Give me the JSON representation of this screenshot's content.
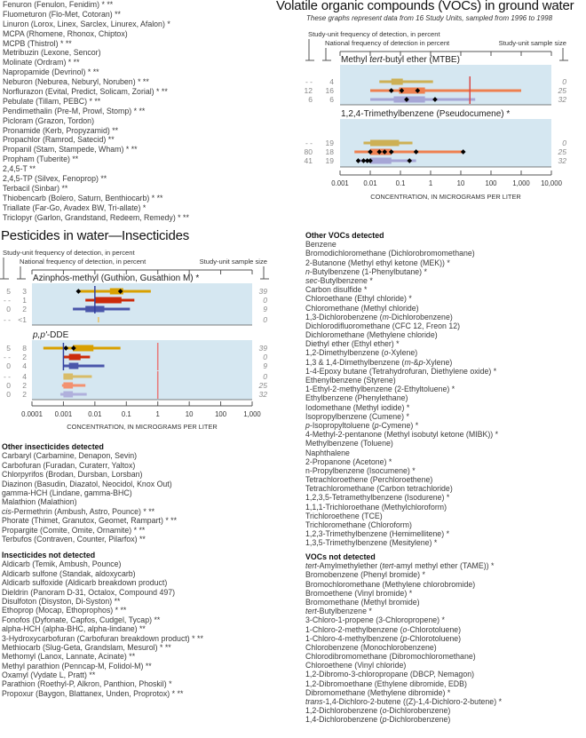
{
  "herbicides_list": {
    "items": [
      "Fenuron (Fenulon, Fenidim) * **",
      "Fluometuron (Flo-Met, Cotoran)  **",
      "Linuron (Lorox, Linex, Sarclex, Linurex, Afalon) *",
      "MCPA (Rhomene, Rhonox, Chiptox)",
      "MCPB (Thistrol) * **",
      "Metribuzin (Lexone, Sencor)",
      "Molinate (Ordram) * **",
      "Napropamide (Devrinol) * **",
      "Neburon (Neburea, Neburyl, Noruben) * **",
      "Norflurazon (Evital, Predict, Solicam, Zorial) * **",
      "Pebulate (Tillam, PEBC) * **",
      "Pendimethalin (Pre-M, Prowl, Stomp) * **",
      "Picloram (Grazon, Tordon)",
      "Pronamide (Kerb, Propyzamid)  **",
      "Propachlor (Ramrod, Satecid)  **",
      "Propanil (Stam, Stampede, Wham) * **",
      "Propham (Tuberite)  **",
      "2,4,5-T  **",
      "2,4,5-TP (Silvex, Fenoprop)  **",
      "Terbacil (Sinbar)  **",
      "Thiobencarb (Bolero, Saturn, Benthiocarb) * **",
      "Triallate (Far-Go, Avadex BW, Tri-allate) *",
      "Triclopyr (Garlon, Grandstand, Redeem, Remedy) * **"
    ]
  },
  "voc_section": {
    "title": "Volatile organic compounds (VOCs) in ground water",
    "subtitle": "These graphs represent data from 16 Study Units, sampled from 1996 to 1998"
  },
  "insecticide_section": {
    "title": "Pesticides in water—Insecticides"
  },
  "chart_data": [
    {
      "type": "box-range",
      "id": "voc",
      "column_labels": {
        "study_freq": "Study-unit frequency of detection, in percent",
        "national_freq": "National frequency of detection in percent",
        "sample_size": "Study-unit sample size"
      },
      "xlabel": "CONCENTRATION, IN MICROGRAMS PER LITER",
      "xscale": "log",
      "xlim": [
        0.001,
        10000
      ],
      "xticks": [
        "0.001",
        "0.01",
        "0.1",
        "1",
        "10",
        "100",
        "1,000",
        "10,000"
      ],
      "panel_color": "#d5e7f1",
      "panels": [
        {
          "title": [
            "Methyl ",
            "tert",
            "-butyl ether (MTBE)"
          ],
          "ref_lines": [
            {
              "value": 20,
              "color": "#d84848",
              "from_row": 0,
              "to_row": 2
            }
          ],
          "rows": [
            {
              "study_freq": "- -",
              "national_freq": "4",
              "sample_size": "0",
              "color": "#cdb055",
              "min": 0.02,
              "q1": 0.05,
              "q3": 0.12,
              "max": 1.2,
              "points": []
            },
            {
              "study_freq": "12",
              "national_freq": "16",
              "sample_size": "25",
              "color": "#ee8050",
              "min": 0.01,
              "q1": 0.09,
              "q3": 0.65,
              "max": 1000,
              "points": [
                0.05,
                0.11,
                0.37
              ]
            },
            {
              "study_freq": "6",
              "national_freq": "6",
              "sample_size": "32",
              "color": "#a6a6d6",
              "min": 0.01,
              "q1": 0.06,
              "q3": 0.65,
              "max": 30,
              "points": [
                0.16,
                1.4
              ]
            }
          ]
        },
        {
          "title": [
            "1,2,4-Trimethylbenzene (Pseudocumene) *"
          ],
          "ref_lines": [],
          "rows": [
            {
              "study_freq": "- -",
              "national_freq": "19",
              "sample_size": "0",
              "color": "#cdb055",
              "min": 0.006,
              "q1": 0.01,
              "q3": 0.09,
              "max": 0.25,
              "points": []
            },
            {
              "study_freq": "80",
              "national_freq": "18",
              "sample_size": "25",
              "color": "#ee8050",
              "min": 0.003,
              "q1": 0.01,
              "q3": 0.05,
              "max": 12,
              "points": [
                0.01,
                0.02,
                0.03,
                0.05,
                0.33,
                12
              ]
            },
            {
              "study_freq": "41",
              "national_freq": "19",
              "sample_size": "32",
              "color": "#a6a6d6",
              "min": 0.004,
              "q1": 0.01,
              "q3": 0.05,
              "max": 0.33,
              "points": [
                0.004,
                0.006,
                0.008,
                0.01,
                0.2
              ]
            }
          ]
        }
      ]
    },
    {
      "type": "box-range",
      "id": "insecticides",
      "column_labels": {
        "study_freq": "Study-unit frequency of detection, in percent",
        "national_freq": "National frequency of detection, in percent",
        "sample_size": "Study-unit sample size"
      },
      "xlabel": "CONCENTRATION, IN MICROGRAMS PER LITER",
      "xscale": "log",
      "xlim": [
        0.0001,
        1000
      ],
      "xticks": [
        "0.0001",
        "0.001",
        "0.01",
        "0.1",
        "1",
        "10",
        "100",
        "1,000"
      ],
      "panel_color": "#d5e7f1",
      "panels": [
        {
          "title": [
            "Azinphos-methyl (Guthion, Gusathion M) *"
          ],
          "ref_lines": [
            {
              "value": 0.01,
              "color": "#3040a0",
              "from_row": 0,
              "to_row": 2
            }
          ],
          "rows": [
            {
              "study_freq": "5",
              "national_freq": "3",
              "sample_size": "39",
              "color": "#d9a000",
              "min": 0.003,
              "q1": 0.03,
              "q3": 0.08,
              "max": 0.6,
              "points": [
                0.003,
                0.065
              ]
            },
            {
              "study_freq": "- -",
              "national_freq": "1",
              "sample_size": "0",
              "color": "#cc2a0a",
              "min": 0.005,
              "q1": 0.01,
              "q3": 0.07,
              "max": 0.18,
              "points": []
            },
            {
              "study_freq": "0",
              "national_freq": "2",
              "sample_size": "9",
              "color": "#4a56aa",
              "min": 0.002,
              "q1": 0.005,
              "q3": 0.02,
              "max": 0.13,
              "points": []
            },
            {
              "study_freq": "- -",
              "national_freq": "<1",
              "sample_size": "0",
              "color": "#e8c060",
              "min": 0.013,
              "q1": 0.013,
              "q3": 0.013,
              "max": 0.013,
              "points": []
            }
          ]
        },
        {
          "title": [
            "",
            "p,p'",
            "-DDE"
          ],
          "ref_lines": [
            {
              "value": 0.001,
              "color": "#3040a0",
              "from_row": 0,
              "to_row": 2
            },
            {
              "value": 1,
              "color": "#e87878",
              "from_row": 0,
              "to_row": 2
            },
            {
              "value": 1,
              "color": "#e87878",
              "from_row": 3,
              "to_row": 5
            }
          ],
          "rows": [
            {
              "study_freq": "5",
              "national_freq": "8",
              "sample_size": "39",
              "color": "#d9a000",
              "min": 0.00023,
              "q1": 0.002,
              "q3": 0.009,
              "max": 0.065,
              "points": [
                0.0012,
                0.0021
              ]
            },
            {
              "study_freq": "- -",
              "national_freq": "2",
              "sample_size": "0",
              "color": "#cc2a0a",
              "min": 0.001,
              "q1": 0.0015,
              "q3": 0.0035,
              "max": 0.007,
              "points": []
            },
            {
              "study_freq": "0",
              "national_freq": "4",
              "sample_size": "9",
              "color": "#4a56aa",
              "min": 0.001,
              "q1": 0.0015,
              "q3": 0.003,
              "max": 0.02,
              "points": []
            },
            {
              "study_freq": "- -",
              "national_freq": "4",
              "sample_size": "0",
              "color": "#d8bc68",
              "min": 0.001,
              "q1": 0.001,
              "q3": 0.002,
              "max": 0.008,
              "points": []
            },
            {
              "study_freq": "0",
              "national_freq": "2",
              "sample_size": "25",
              "color": "#f39170",
              "min": 0.0009,
              "q1": 0.001,
              "q3": 0.002,
              "max": 0.005,
              "points": []
            },
            {
              "study_freq": "0",
              "national_freq": "2",
              "sample_size": "32",
              "color": "#b0b0dc",
              "min": 0.0008,
              "q1": 0.001,
              "q3": 0.002,
              "max": 0.0055,
              "points": []
            }
          ]
        }
      ]
    }
  ],
  "other_insecticides": {
    "heading": "Other insecticides detected",
    "items": [
      "Carbaryl (Carbamine, Denapon, Sevin)",
      "Carbofuran (Furadan, Curaterr, Yaltox)",
      "Chlorpyrifos (Brodan, Dursban, Lorsban)",
      "Diazinon (Basudin, Diazatol, Neocidol, Knox Out)",
      "gamma-HCH (Lindane, gamma-BHC)",
      "Malathion (Malathion)",
      [
        "",
        "cis",
        "-Permethrin (Ambush, Astro, Pounce) * **"
      ],
      "Phorate (Thimet, Granutox, Geomet, Rampart) * **",
      "Propargite (Comite, Omite, Ornamite) * **",
      "Terbufos (Contraven, Counter, Pilarfox)  **"
    ]
  },
  "insecticides_not_detected": {
    "heading": "Insecticides not detected",
    "items": [
      "Aldicarb (Temik, Ambush, Pounce)",
      "Aldicarb sulfone (Standak, aldoxycarb)",
      "Aldicarb sulfoxide (Aldicarb breakdown product)",
      "Dieldrin (Panoram D-31, Octalox, Compound 497)",
      "Disulfoton (Disyston, Di-Syston)  **",
      "Ethoprop (Mocap, Ethoprophos) * **",
      "Fonofos (Dyfonate, Capfos, Cudgel, Tycap)  **",
      "alpha-HCH (alpha-BHC, alpha-lindane)  **",
      "3-Hydroxycarbofuran (Carbofuran breakdown product) * **",
      "Methiocarb (Slug-Geta, Grandslam, Mesurol) * **",
      "Methomyl (Lanox, Lannate, Acinate)  **",
      "Methyl parathion (Penncap-M, Folidol-M)  **",
      "Oxamyl (Vydate L, Pratt)  **",
      "Parathion (Roethyl-P, Alkron, Panthion, Phoskil) *",
      "Propoxur (Baygon, Blattanex, Unden, Proprotox) * **"
    ]
  },
  "other_vocs": {
    "heading": "Other VOCs detected",
    "items": [
      "Benzene",
      "Bromodichloromethane (Dichlorobromomethane)",
      "2-Butanone (Methyl ethyl ketone (MEK)) *",
      [
        "",
        "n",
        "-Butylbenzene (1-Phenylbutane) *"
      ],
      [
        "",
        "sec",
        "-Butylbenzene *"
      ],
      "Carbon disulfide *",
      "Chloroethane (Ethyl chloride) *",
      "Chloromethane (Methyl chloride)",
      [
        "1,3-Dichlorobenzene (",
        "m",
        "-Dichlorobenzene)"
      ],
      "Dichlorodifluoromethane (CFC 12, Freon 12)",
      "Dichloromethane (Methylene chloride)",
      "Diethyl ether (Ethyl ether) *",
      [
        "1,2-Dimethylbenzene (",
        "o",
        "-Xylene)"
      ],
      [
        "1,3 & 1,4-Dimethylbenzene (",
        "m",
        "-&",
        "p",
        "-Xylene)"
      ],
      "1-4-Epoxy butane (Tetrahydrofuran, Diethylene oxide) *",
      "Ethenylbenzene (Styrene)",
      "1-Ethyl-2-methylbenzene (2-Ethyltoluene) *",
      "Ethylbenzene (Phenylethane)",
      "Iodomethane (Methyl iodide) *",
      "Isopropylbenzene (Cumene) *",
      [
        "",
        "p",
        "-Isopropyltoluene (",
        "p",
        "-Cymene) *"
      ],
      "4-Methyl-2-pentanone (Methyl isobutyl ketone (MIBK)) *",
      "Methylbenzene (Toluene)",
      "Naphthalene",
      "2-Propanone (Acetone) *",
      "n-Propylbenzene (Isocumene) *",
      "Tetrachloroethene (Perchloroethene)",
      "Tetrachloromethane (Carbon tetrachloride)",
      "1,2,3,5-Tetramethylbenzene (Isodurene) *",
      "1,1,1-Trichloroethane (Methylchloroform)",
      "Trichloroethene (TCE)",
      "Trichloromethane (Chloroform)",
      "1,2,3-Trimethylbenzene (Hemimellitene) *",
      "1,3,5-Trimethylbenzene (Mesitylene) *"
    ]
  },
  "vocs_not_detected": {
    "heading": "VOCs not detected",
    "items": [
      [
        "",
        "tert",
        "-Amylmethylether (",
        "tert",
        "-amyl methyl ether (TAME)) *"
      ],
      "Bromobenzene (Phenyl bromide) *",
      "Bromochloromethane (Methylene chlorobromide)",
      "Bromoethene (Vinyl bromide) *",
      "Bromomethane (Methyl bromide)",
      [
        "",
        "tert",
        "-Butylbenzene *"
      ],
      "3-Chloro-1-propene (3-Chloropropene) *",
      [
        "1-Chloro-2-methylbenzene (",
        "o",
        "-Chlorotoluene)"
      ],
      [
        "1-Chloro-4-methylbenzene (",
        "p",
        "-Chlorotoluene)"
      ],
      "Chlorobenzene (Monochlorobenzene)",
      "Chlorodibromomethane (Dibromochloromethane)",
      "Chloroethene (Vinyl chloride)",
      "1,2-Dibromo-3-chloropropane (DBCP, Nemagon)",
      "1,2-Dibromoethane (Ethylene dibromide, EDB)",
      "Dibromomethane (Methylene dibromide) *",
      [
        "",
        "trans",
        "-1,4-Dichloro-2-butene ((Z)-1,4-Dichloro-2-butene) *"
      ],
      [
        "1,2-Dichlorobenzene (",
        "o",
        "-Dichlorobenzene)"
      ],
      [
        "1,4-Dichlorobenzene (",
        "p",
        "-Dichlorobenzene)"
      ]
    ]
  }
}
